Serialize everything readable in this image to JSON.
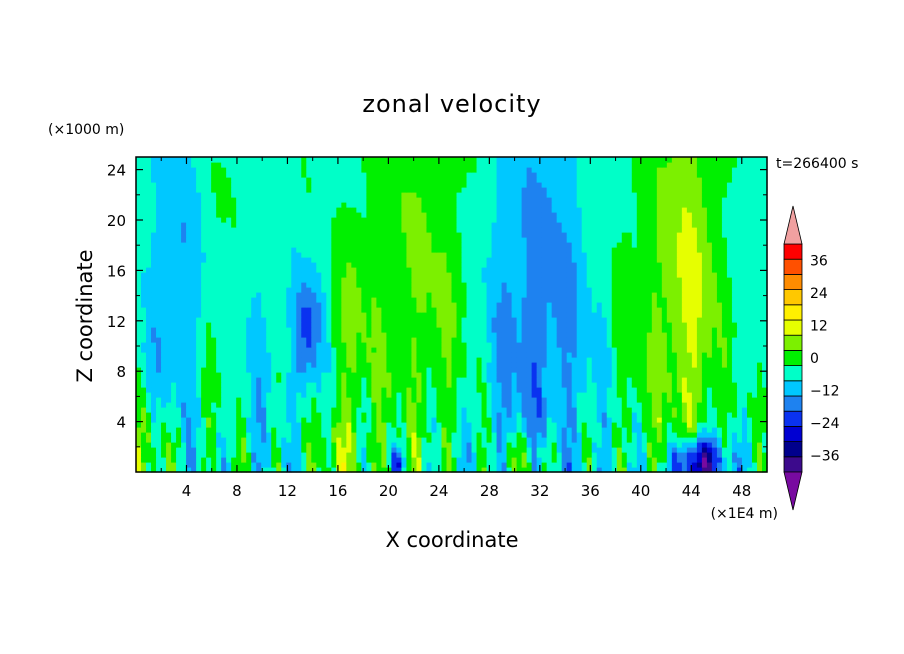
{
  "chart_data": {
    "type": "heatmap",
    "title": "zonal velocity",
    "xlabel": "X coordinate",
    "ylabel": "Z coordinate",
    "x_units": "(×1E4 m)",
    "y_units": "(×1000 m)",
    "time_label": "t=266400 s",
    "xlim": [
      0,
      50
    ],
    "ylim": [
      0,
      25
    ],
    "x_ticks": [
      4,
      8,
      12,
      16,
      20,
      24,
      28,
      32,
      36,
      40,
      44,
      48
    ],
    "y_ticks": [
      4,
      8,
      12,
      16,
      20,
      24
    ],
    "colorbar": {
      "levels": [
        -42,
        -36,
        -30,
        -24,
        -18,
        -12,
        -6,
        0,
        6,
        12,
        18,
        24,
        30,
        36,
        42
      ],
      "labels": [
        "36",
        "24",
        "12",
        "0",
        "−12",
        "−24",
        "−36"
      ],
      "label_values": [
        36,
        24,
        12,
        0,
        -12,
        -24,
        -36
      ],
      "colors": [
        "#3c0a8c",
        "#00008c",
        "#0000d2",
        "#0a32f0",
        "#1e82f0",
        "#00c8ff",
        "#00ffc8",
        "#00f000",
        "#7cf000",
        "#e6ff00",
        "#fff000",
        "#ffc800",
        "#ff8c00",
        "#ff5000",
        "#ff0000"
      ],
      "under_color": "#780aa0",
      "over_color": "#f0a0a0"
    },
    "field": {
      "background_value": -3,
      "features": [
        {
          "x": 3.5,
          "z": 14,
          "sx": 1.8,
          "sz": 9,
          "v": -10
        },
        {
          "x": 6.5,
          "z": 13,
          "sx": 1.5,
          "sz": 9,
          "v": 7
        },
        {
          "x": 9.5,
          "z": 12,
          "sx": 2.0,
          "sz": 9,
          "v": -7
        },
        {
          "x": 12.5,
          "z": 16,
          "sx": 3.0,
          "sz": 10,
          "v": 4
        },
        {
          "x": 13.6,
          "z": 11,
          "sx": 0.8,
          "sz": 3,
          "v": -17
        },
        {
          "x": 14.5,
          "z": 12,
          "sx": 1.5,
          "sz": 10,
          "v": -6
        },
        {
          "x": 16.5,
          "z": 10,
          "sx": 1.3,
          "sz": 5,
          "v": 7
        },
        {
          "x": 21,
          "z": 15,
          "sx": 4.0,
          "sz": 12,
          "v": 6
        },
        {
          "x": 24,
          "z": 15,
          "sx": 3.0,
          "sz": 10,
          "v": 4
        },
        {
          "x": 29.5,
          "z": 12,
          "sx": 2.0,
          "sz": 12,
          "v": -8
        },
        {
          "x": 33.5,
          "z": 12,
          "sx": 2.5,
          "sz": 12,
          "v": -10
        },
        {
          "x": 38.5,
          "z": 14,
          "sx": 3.0,
          "sz": 10,
          "v": 3
        },
        {
          "x": 40.5,
          "z": 14,
          "sx": 1.5,
          "sz": 10,
          "v": 4
        },
        {
          "x": 44,
          "z": 14,
          "sx": 1.7,
          "sz": 13,
          "v": 15
        },
        {
          "x": 44.5,
          "z": 0.6,
          "sx": 1.4,
          "sz": 1.5,
          "v": -40
        },
        {
          "x": 16,
          "z": 1.0,
          "sx": 1.5,
          "sz": 2.5,
          "v": 10
        },
        {
          "x": 31,
          "z": 1.0,
          "sx": 1.5,
          "sz": 1.5,
          "v": 12
        },
        {
          "x": 20.8,
          "z": 0.8,
          "sx": 0.4,
          "sz": 0.8,
          "v": -18
        },
        {
          "x": 1.5,
          "z": 2.0,
          "sx": 1.5,
          "sz": 3.0,
          "v": 8
        }
      ]
    }
  }
}
